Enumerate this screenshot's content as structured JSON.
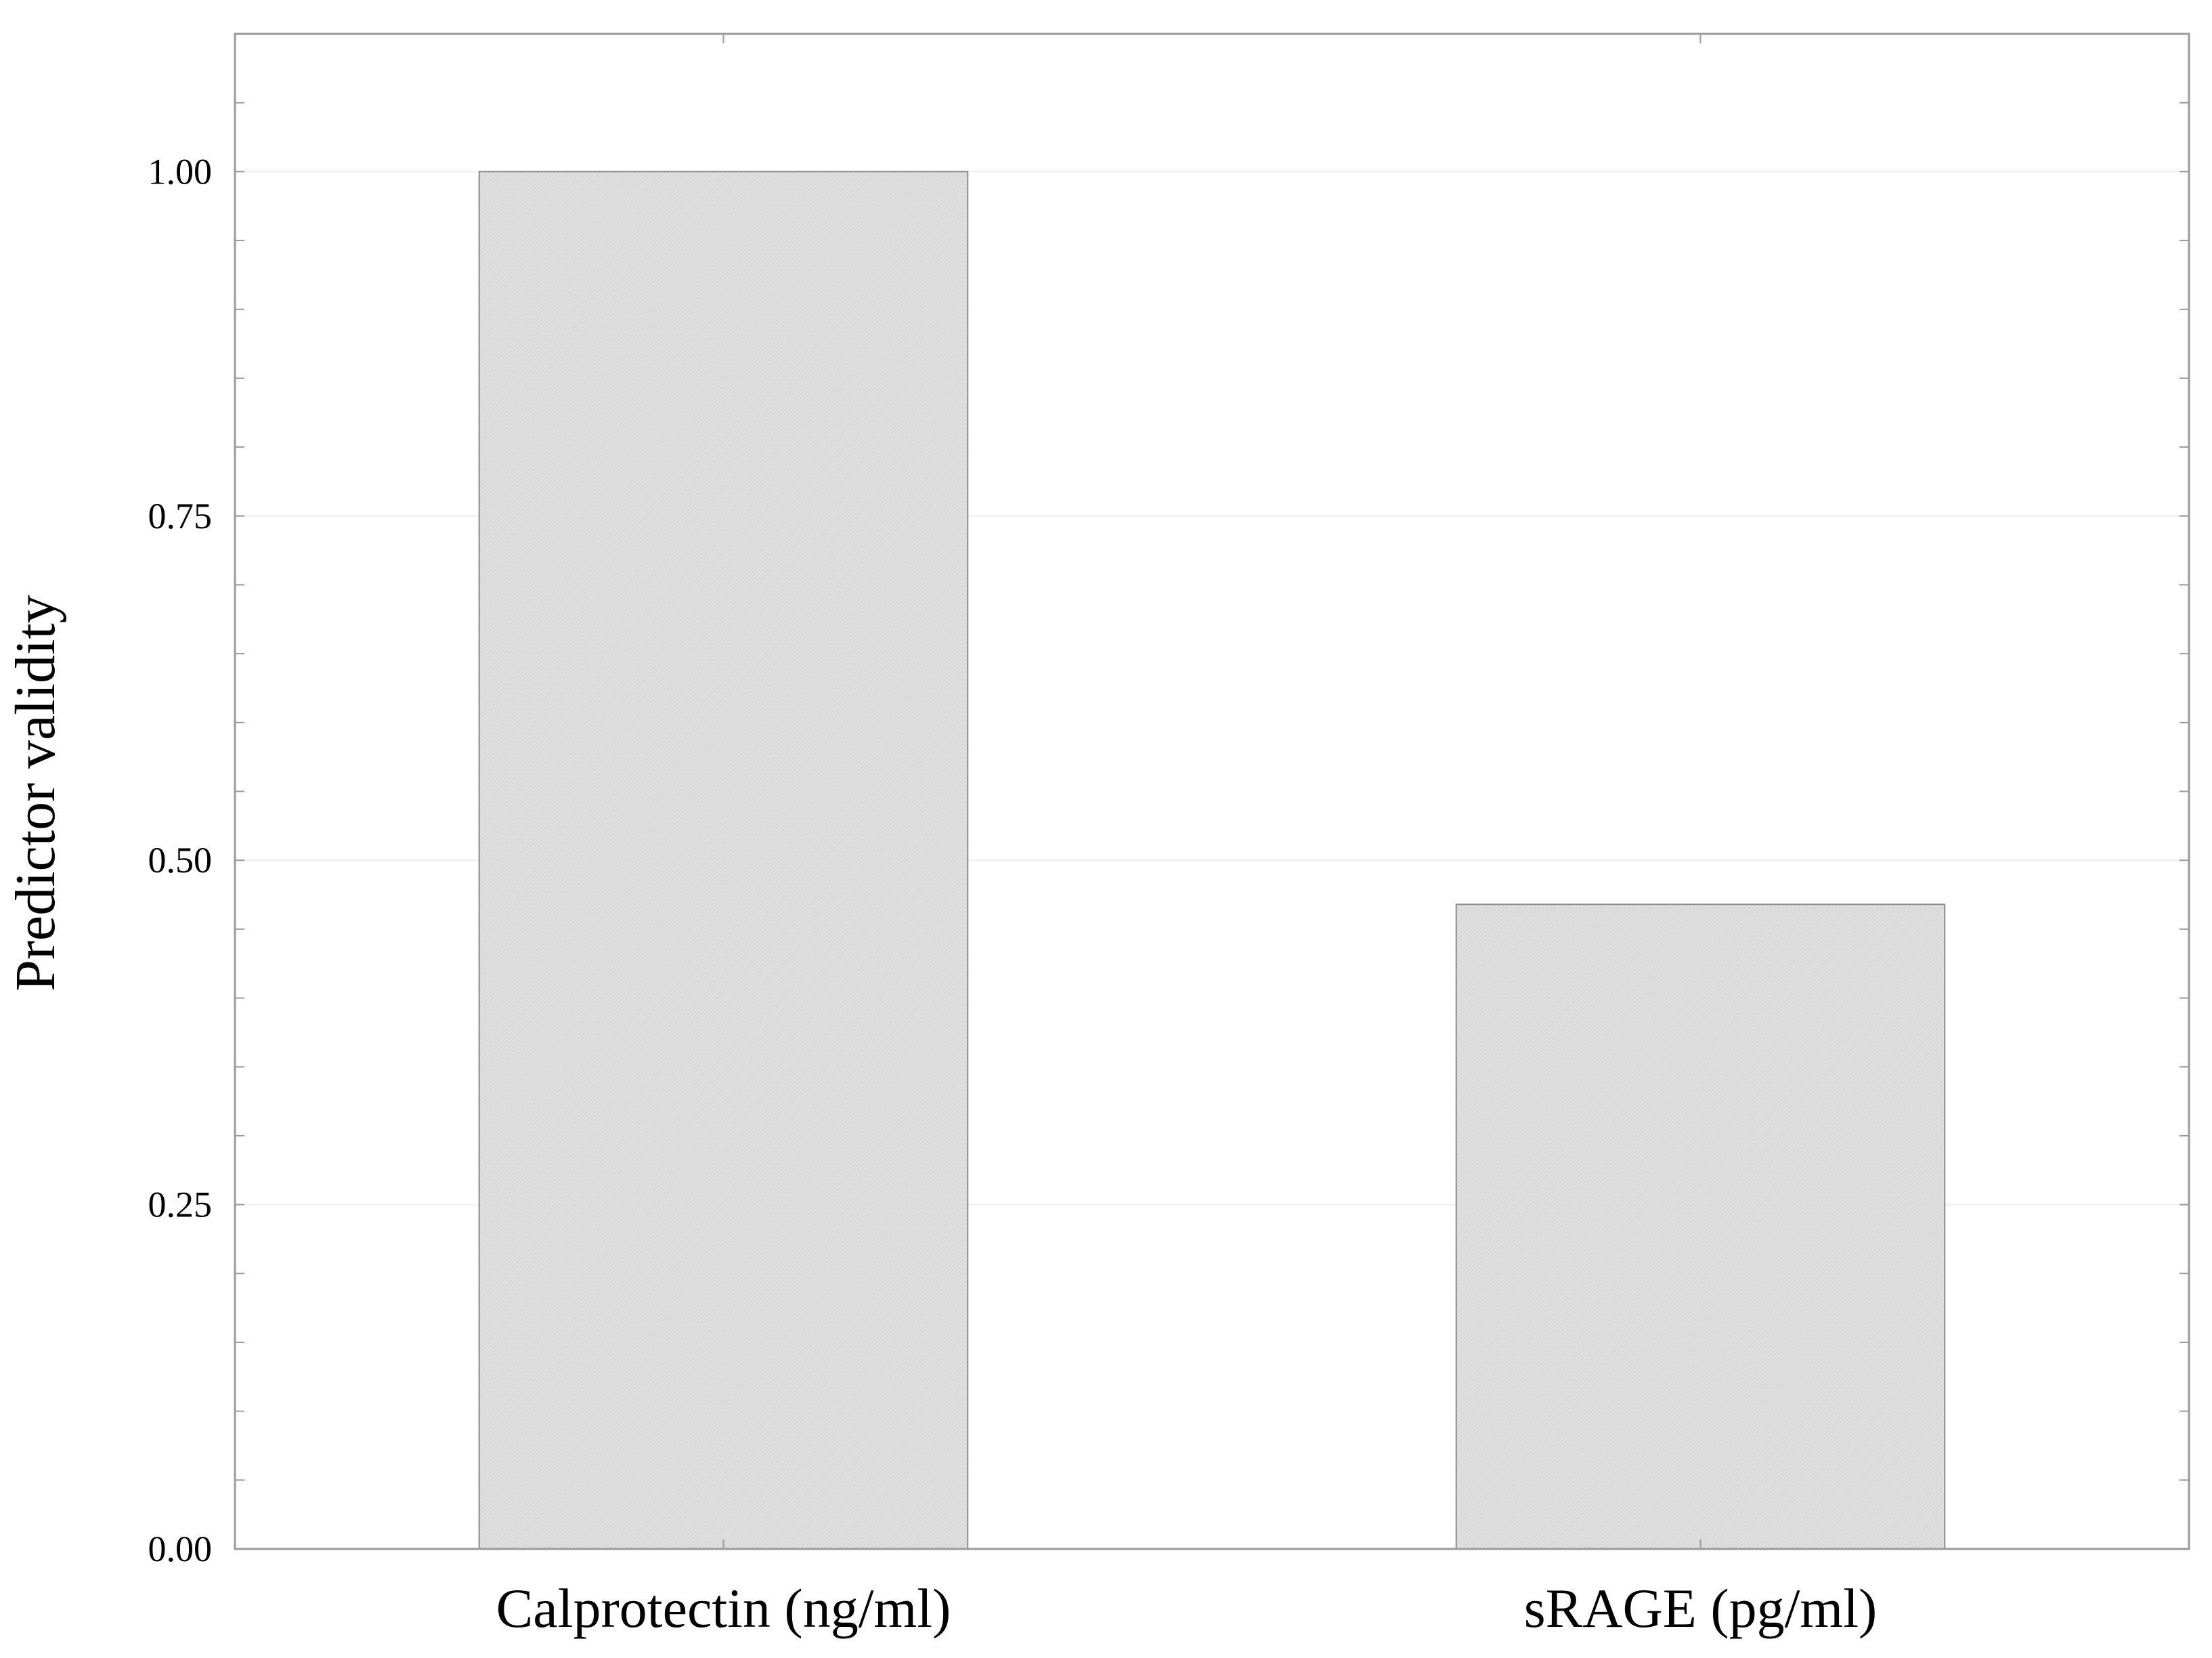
{
  "chart_data": {
    "type": "bar",
    "categories": [
      "Calprotectin (ng/ml)",
      "sRAGE (pg/ml)"
    ],
    "values": [
      1.0,
      0.468
    ],
    "title": "",
    "xlabel": "",
    "ylabel": "Predictor validity",
    "ylim": [
      0,
      1.1
    ],
    "yticks": [
      0.0,
      0.25,
      0.5,
      0.75,
      1.0
    ],
    "ytick_labels": [
      "0.00",
      "0.25",
      "0.50",
      "0.75",
      "1.00"
    ],
    "grid": true,
    "legend": "none",
    "colors": {
      "bar_fill": "#e0e0e0",
      "bar_stroke": "#8a8a8a",
      "frame": "#9a9a9a",
      "grid": "#eeeeee",
      "text": "#000000"
    }
  }
}
